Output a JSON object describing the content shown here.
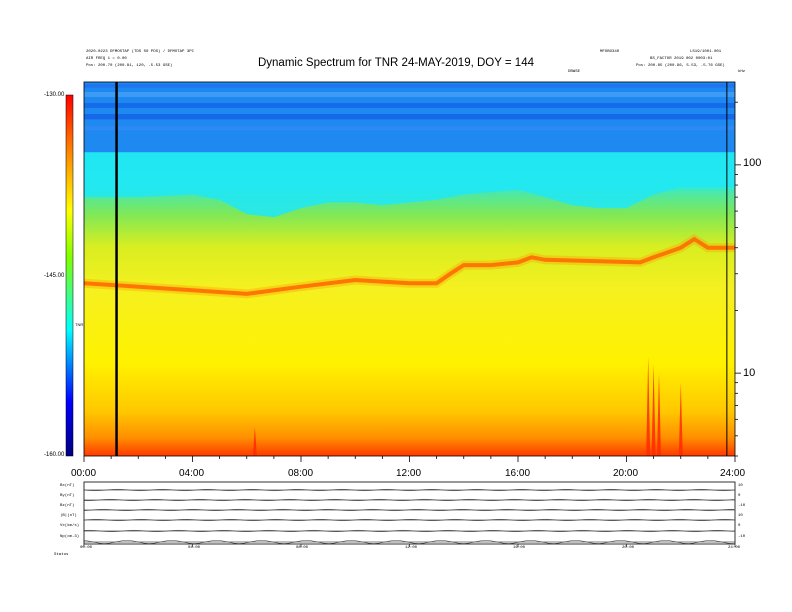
{
  "header": {
    "left_line1": "2020-0223 DFMOSTAP (TDS S0 PDS) / DFMOTAP  3PC",
    "left_line2": "AIR FREQ 1 = 0.00",
    "left_line3": "Pos:  200.70 (200.81, 120, -5.53 GSE)",
    "right_line1": "MFOBO340",
    "right_line1b": "LS19/1001.001",
    "right_line2": "BS_FACTOR 2019 002 0003:01",
    "right_line3": "Pos:  200.85 (200.96, 5.53, -5.76 GSE)",
    "center_small": "DBWSE",
    "hz_label": "kHz"
  },
  "chart_data": {
    "type": "heatmap",
    "title": "Dynamic Spectrum for TNR 24-MAY-2019, DOY = 144",
    "x_ticks": [
      "00:00",
      "04:00",
      "08:00",
      "12:00",
      "16:00",
      "20:00",
      "24:00"
    ],
    "x_range_hours": [
      0,
      24
    ],
    "y_scale": "log",
    "y_range_khz": [
      4,
      250
    ],
    "y_ticks": [
      "100",
      "10"
    ],
    "y_tick_values": [
      100,
      10
    ],
    "colorbar": {
      "label": "TNR",
      "ticks": [
        "-130.00",
        "-145.00",
        "-160.00"
      ],
      "range_db": [
        -160,
        -130
      ],
      "colors": [
        "#000080",
        "#0000ff",
        "#00ffff",
        "#ffff00",
        "#ff8000",
        "#ff0000"
      ]
    },
    "vertical_markers_hours": [
      1.2,
      23.7
    ],
    "band_edge_khz": [
      [
        0,
        70
      ],
      [
        2,
        70
      ],
      [
        4,
        72
      ],
      [
        5,
        68
      ],
      [
        6,
        58
      ],
      [
        7,
        56
      ],
      [
        8,
        62
      ],
      [
        9,
        66
      ],
      [
        10,
        66
      ],
      [
        11,
        64
      ],
      [
        12,
        66
      ],
      [
        13,
        68
      ],
      [
        14,
        72
      ],
      [
        15,
        74
      ],
      [
        16,
        76
      ],
      [
        17,
        70
      ],
      [
        18,
        64
      ],
      [
        19,
        62
      ],
      [
        20,
        62
      ],
      [
        21,
        72
      ],
      [
        22,
        78
      ],
      [
        23,
        78
      ],
      [
        24,
        78
      ]
    ],
    "emission_line_khz": [
      [
        0,
        27
      ],
      [
        2,
        26
      ],
      [
        4,
        25
      ],
      [
        6,
        24
      ],
      [
        8,
        26
      ],
      [
        10,
        28
      ],
      [
        12,
        27
      ],
      [
        13,
        27
      ],
      [
        13.5,
        30
      ],
      [
        14,
        33
      ],
      [
        15,
        33
      ],
      [
        16,
        34
      ],
      [
        16.5,
        36
      ],
      [
        17,
        35
      ],
      [
        20.5,
        34
      ],
      [
        21,
        36
      ],
      [
        22,
        40
      ],
      [
        22.5,
        44
      ],
      [
        23,
        40
      ],
      [
        24,
        40
      ]
    ],
    "bursts_hours": [
      6.3,
      20.8,
      21.0,
      21.2,
      22.0
    ]
  },
  "lower_panel": {
    "row_labels": [
      "Bx(nT)",
      "By(nT)",
      "Bz(nT)",
      "|B|(nT)",
      "Vx(km/s)",
      "Np(cm-3)"
    ],
    "right_ticks": [
      "10",
      "0",
      "-10",
      "10",
      "0",
      "-10"
    ],
    "time_ticks": [
      "00:00",
      "04:00",
      "08:00",
      "12:00",
      "16:00",
      "20:00",
      "24:00"
    ],
    "footer": "Status"
  }
}
